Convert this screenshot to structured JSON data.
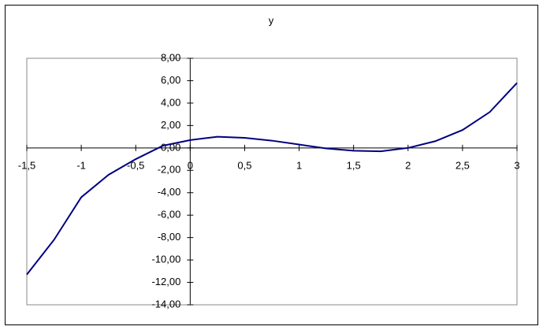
{
  "chart_data": {
    "type": "line",
    "title": "y",
    "color": "#000080",
    "x": [
      -1.5,
      -1.25,
      -1,
      -0.75,
      -0.5,
      -0.25,
      0,
      0.25,
      0.5,
      0.75,
      1,
      1.25,
      1.5,
      1.75,
      2,
      2.25,
      2.5,
      2.75,
      3
    ],
    "values": [
      -11.3,
      -8.2,
      -4.4,
      -2.4,
      -1.0,
      0.2,
      0.7,
      1.0,
      0.9,
      0.65,
      0.3,
      -0.05,
      -0.25,
      -0.3,
      0,
      0.6,
      1.6,
      3.2,
      5.8
    ],
    "xlim": [
      -1.5,
      3
    ],
    "ylim": [
      -14,
      8
    ],
    "xticks": [
      {
        "value": -1.5,
        "label": "-1,5"
      },
      -1,
      {
        "value": -0.5,
        "label": "-0,5"
      },
      0,
      {
        "value": 0.5,
        "label": "0,5"
      },
      1,
      {
        "value": 1.5,
        "label": "1,5"
      },
      2,
      {
        "value": 2.5,
        "label": "2,5"
      },
      3
    ],
    "yticks": [
      {
        "value": 8,
        "label": "8,00"
      },
      {
        "value": 6,
        "label": "6,00"
      },
      {
        "value": 4,
        "label": "4,00"
      },
      {
        "value": 2,
        "label": "2,00"
      },
      {
        "value": 0,
        "label": "0,00"
      },
      {
        "value": -2,
        "label": "-2,00"
      },
      {
        "value": -4,
        "label": "-4,00"
      },
      {
        "value": -6,
        "label": "-6,00"
      },
      {
        "value": -8,
        "label": "-8,00"
      },
      {
        "value": -10,
        "label": "-10,00"
      },
      {
        "value": -12,
        "label": "-12,00"
      },
      {
        "value": -14,
        "label": "-14,00"
      }
    ]
  }
}
